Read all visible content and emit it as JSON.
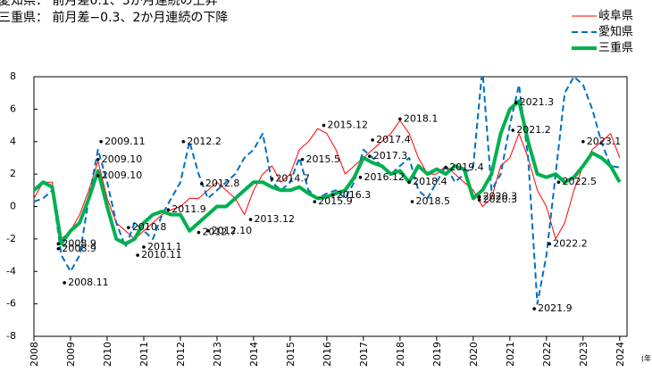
{
  "chart_data": {
    "type": "line",
    "subtitles": [
      "愛知県： 前月差0.1、3か月連続の上昇",
      "三重県： 前月差−0.3、2か月連続の下降"
    ],
    "x": [
      2008,
      2008.25,
      2008.5,
      2008.75,
      2009,
      2009.25,
      2009.5,
      2009.75,
      2010,
      2010.25,
      2010.5,
      2010.75,
      2011,
      2011.25,
      2011.5,
      2011.75,
      2012,
      2012.25,
      2012.5,
      2012.75,
      2013,
      2013.25,
      2013.5,
      2013.75,
      2014,
      2014.25,
      2014.5,
      2014.75,
      2015,
      2015.25,
      2015.5,
      2015.75,
      2016,
      2016.25,
      2016.5,
      2016.75,
      2017,
      2017.25,
      2017.5,
      2017.75,
      2018,
      2018.25,
      2018.5,
      2018.75,
      2019,
      2019.25,
      2019.5,
      2019.75,
      2020,
      2020.25,
      2020.5,
      2020.75,
      2021,
      2021.25,
      2021.5,
      2021.75,
      2022,
      2022.25,
      2022.5,
      2022.75,
      2023,
      2023.25,
      2023.5,
      2023.75,
      2024
    ],
    "series": [
      {
        "name": "岐阜県",
        "color": "#ff0000",
        "width": 1,
        "dash": false,
        "values": [
          0.5,
          1.5,
          1.5,
          -2.0,
          -1.5,
          -0.5,
          1.0,
          2.8,
          0.5,
          -1.0,
          -1.5,
          -2.0,
          -1.5,
          -1.0,
          -0.5,
          -0.2,
          0.0,
          0.5,
          0.5,
          1.0,
          1.5,
          1.0,
          0.5,
          -0.5,
          1.0,
          2.0,
          2.5,
          1.5,
          2.0,
          3.5,
          4.0,
          4.8,
          4.5,
          3.5,
          2.0,
          2.5,
          3.0,
          3.5,
          4.0,
          4.5,
          5.3,
          4.5,
          3.0,
          2.0,
          2.0,
          2.5,
          2.0,
          1.5,
          1.0,
          0.0,
          0.5,
          2.5,
          3.0,
          4.5,
          3.0,
          1.0,
          0.0,
          -2.0,
          -1.0,
          1.0,
          2.5,
          3.5,
          4.0,
          4.5,
          3.0
        ]
      },
      {
        "name": "愛知県",
        "color": "#0070c0",
        "width": 2,
        "dash": true,
        "values": [
          0.3,
          0.5,
          1.0,
          -3.0,
          -4.0,
          -3.0,
          0.5,
          3.5,
          1.5,
          -1.0,
          -2.5,
          -1.0,
          -1.5,
          -2.0,
          -0.5,
          0.5,
          1.5,
          4.0,
          2.0,
          0.5,
          1.0,
          1.5,
          2.0,
          3.0,
          3.5,
          4.5,
          1.5,
          1.0,
          1.5,
          3.0,
          1.0,
          0.5,
          0.8,
          1.0,
          0.5,
          1.5,
          3.5,
          3.0,
          2.5,
          2.0,
          2.5,
          3.0,
          1.0,
          0.5,
          1.5,
          2.5,
          1.5,
          2.0,
          2.5,
          8.5,
          1.0,
          2.0,
          5.0,
          7.5,
          3.0,
          -6.0,
          -3.0,
          2.0,
          7.0,
          8.0,
          7.5,
          6.0,
          4.0,
          2.5,
          2.4
        ]
      },
      {
        "name": "三重県",
        "color": "#00b050",
        "width": 4,
        "dash": false,
        "values": [
          1.0,
          1.5,
          1.2,
          -2.3,
          -1.5,
          -1.0,
          0.5,
          2.2,
          0.0,
          -2.0,
          -2.3,
          -2.0,
          -1.0,
          -0.5,
          -0.3,
          -0.5,
          -0.5,
          -1.5,
          -1.0,
          -0.5,
          0.0,
          0.0,
          0.5,
          1.0,
          1.5,
          1.5,
          1.2,
          1.0,
          1.0,
          1.2,
          0.8,
          0.5,
          0.6,
          0.8,
          1.0,
          1.8,
          3.0,
          2.7,
          2.5,
          2.0,
          2.2,
          1.5,
          2.5,
          2.0,
          2.3,
          2.0,
          2.5,
          2.3,
          0.5,
          1.0,
          2.0,
          4.5,
          6.0,
          6.5,
          4.0,
          2.0,
          1.8,
          2.0,
          1.5,
          1.8,
          2.5,
          3.3,
          3.0,
          2.5,
          1.5
        ]
      }
    ],
    "annotations": [
      {
        "text": "2008.9",
        "x": 2008.667,
        "y": -2.3
      },
      {
        "text": "2008.9",
        "x": 2008.667,
        "y": -2.6
      },
      {
        "text": "2008.11",
        "x": 2008.833,
        "y": -4.7
      },
      {
        "text": "2009.11",
        "x": 2009.833,
        "y": 4.0
      },
      {
        "text": "2009.10",
        "x": 2009.75,
        "y": 2.9
      },
      {
        "text": "2009.10",
        "x": 2009.75,
        "y": 1.9
      },
      {
        "text": "2010.8",
        "x": 2010.583,
        "y": -1.3
      },
      {
        "text": "2010.11",
        "x": 2010.833,
        "y": -3.0
      },
      {
        "text": "2011.1",
        "x": 2011.0,
        "y": -2.5
      },
      {
        "text": "2012.7",
        "x": 2012.5,
        "y": -1.6
      },
      {
        "text": "2011.9",
        "x": 2011.667,
        "y": -0.2
      },
      {
        "text": "2012.2",
        "x": 2012.083,
        "y": 4.0
      },
      {
        "text": "2012.8",
        "x": 2012.583,
        "y": 1.4
      },
      {
        "text": "2012.10",
        "x": 2012.75,
        "y": -1.5
      },
      {
        "text": "2013.12",
        "x": 2013.917,
        "y": -0.8
      },
      {
        "text": "2014.7",
        "x": 2014.5,
        "y": 1.7
      },
      {
        "text": "2015.5",
        "x": 2015.333,
        "y": 2.9
      },
      {
        "text": "2015.9",
        "x": 2015.667,
        "y": 0.3
      },
      {
        "text": "2015.12",
        "x": 2015.917,
        "y": 5.0
      },
      {
        "text": "2016.3",
        "x": 2016.167,
        "y": 0.7
      },
      {
        "text": "2016.12",
        "x": 2016.917,
        "y": 1.8
      },
      {
        "text": "2017.3",
        "x": 2017.167,
        "y": 3.1
      },
      {
        "text": "2017.4",
        "x": 2017.25,
        "y": 4.1
      },
      {
        "text": "2018.1",
        "x": 2018.0,
        "y": 5.4
      },
      {
        "text": "2018.4",
        "x": 2018.25,
        "y": 1.5
      },
      {
        "text": "2018.5",
        "x": 2018.333,
        "y": 0.3
      },
      {
        "text": "2019.4",
        "x": 2019.25,
        "y": 2.4
      },
      {
        "text": "2020.3",
        "x": 2020.167,
        "y": 0.6
      },
      {
        "text": "2020.3",
        "x": 2020.167,
        "y": 0.4
      },
      {
        "text": "2021.3",
        "x": 2021.167,
        "y": 6.4
      },
      {
        "text": "2021.2",
        "x": 2021.083,
        "y": 4.7
      },
      {
        "text": "2021.9",
        "x": 2021.667,
        "y": -6.3
      },
      {
        "text": "2022.2",
        "x": 2022.083,
        "y": -2.3
      },
      {
        "text": "2022.5",
        "x": 2022.333,
        "y": 1.5
      },
      {
        "text": "2023.1",
        "x": 2023.0,
        "y": 4.0
      }
    ],
    "x_unit": "(年",
    "xlim": [
      2008,
      2024.2
    ],
    "ylim": [
      -8,
      8
    ],
    "xticks": [
      2008,
      2009,
      2010,
      2011,
      2012,
      2013,
      2014,
      2015,
      2016,
      2017,
      2018,
      2019,
      2020,
      2021,
      2022,
      2023,
      2024
    ],
    "yticks": [
      -8,
      -6,
      -4,
      -2,
      0,
      2,
      4,
      6,
      8
    ],
    "legend": "upper right",
    "grid": false
  }
}
